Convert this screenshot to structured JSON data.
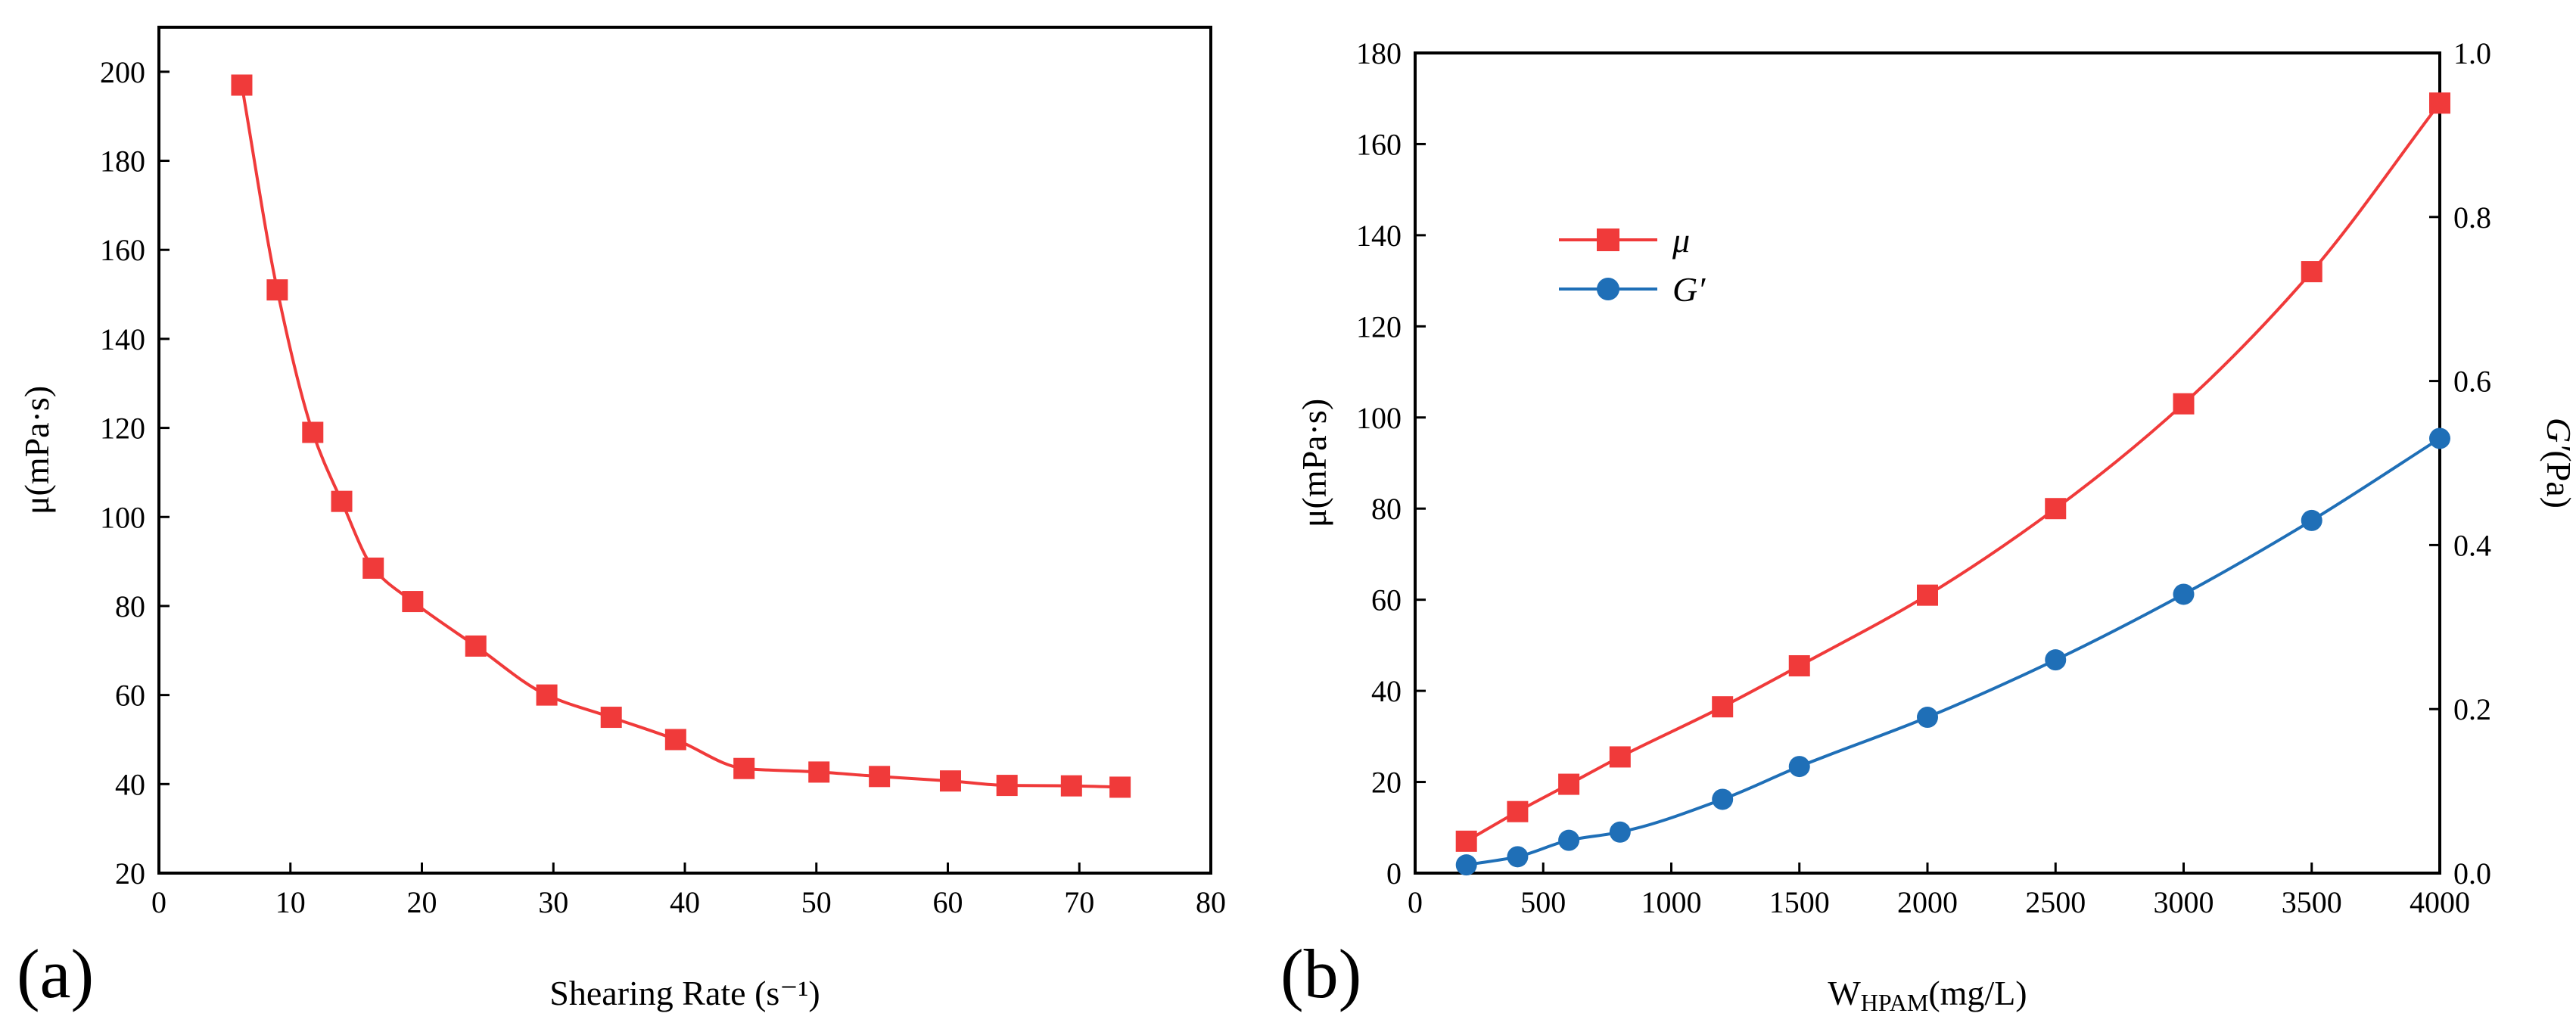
{
  "colors": {
    "mu": "#f03a3a",
    "g": "#1f6fb7",
    "axis": "#000000"
  },
  "chart_data": [
    {
      "id": "a",
      "type": "line",
      "panel_label": "(a)",
      "xlabel": "Shearing Rate (s⁻¹)",
      "ylabel": "μ(mPa·s)",
      "xlim": [
        0,
        80
      ],
      "ylim": [
        20,
        210
      ],
      "xticks": [
        0,
        10,
        20,
        30,
        40,
        50,
        60,
        70,
        80
      ],
      "yticks": [
        20,
        40,
        60,
        80,
        100,
        120,
        140,
        160,
        180,
        200
      ],
      "series": [
        {
          "name": "μ",
          "marker": "square",
          "color_key": "mu",
          "x": [
            6.3,
            9.0,
            11.7,
            13.9,
            16.3,
            19.3,
            24.1,
            29.5,
            34.4,
            39.3,
            44.5,
            50.2,
            54.8,
            60.2,
            64.5,
            69.4,
            73.1
          ],
          "y": [
            197,
            151,
            119,
            103.5,
            88.5,
            81,
            71,
            60,
            55,
            50,
            43.5,
            42.7,
            41.7,
            40.7,
            39.7,
            39.6,
            39.3
          ]
        }
      ]
    },
    {
      "id": "b",
      "type": "line",
      "panel_label": "(b)",
      "xlabel_main": "W",
      "xlabel_sub": "HPAM",
      "xlabel_tail": "(mg/L)",
      "ylabel": "μ(mPa·s)",
      "y2label_sym": "G′",
      "y2label_unit": "(Pa)",
      "xlim": [
        0,
        4000
      ],
      "ylim": [
        0,
        180
      ],
      "y2lim": [
        0,
        1.0
      ],
      "xticks": [
        0,
        500,
        1000,
        1500,
        2000,
        2500,
        3000,
        3500,
        4000
      ],
      "yticks": [
        0,
        20,
        40,
        60,
        80,
        100,
        120,
        140,
        160,
        180
      ],
      "y2ticks": [
        0.0,
        0.2,
        0.4,
        0.6,
        0.8,
        1.0
      ],
      "y2ticklabels": [
        "0.0",
        "0.2",
        "0.4",
        "0.6",
        "0.8",
        "1.0"
      ],
      "legend_position": "upper-left",
      "series": [
        {
          "name": "μ",
          "axis": "left",
          "marker": "square",
          "color_key": "mu",
          "x": [
            200,
            400,
            600,
            800,
            1200,
            1500,
            2000,
            2500,
            3000,
            3500,
            4000
          ],
          "y": [
            7,
            13.5,
            19.5,
            25.5,
            36.5,
            45.5,
            61,
            80,
            103,
            132,
            169
          ]
        },
        {
          "name": "G′",
          "axis": "right",
          "marker": "circle",
          "color_key": "g",
          "x": [
            200,
            400,
            600,
            800,
            1200,
            1500,
            2000,
            2500,
            3000,
            3500,
            4000
          ],
          "y": [
            0.01,
            0.02,
            0.04,
            0.05,
            0.09,
            0.13,
            0.19,
            0.26,
            0.34,
            0.43,
            0.53
          ]
        }
      ]
    }
  ]
}
